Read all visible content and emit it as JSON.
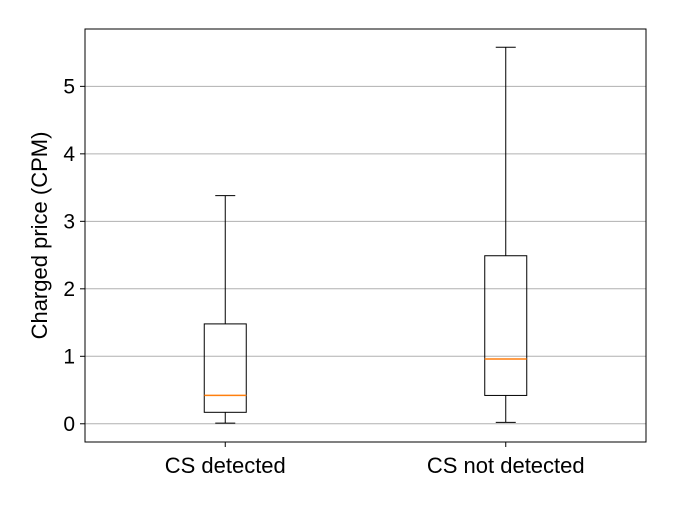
{
  "chart_data": {
    "type": "box",
    "title": "",
    "xlabel": "",
    "ylabel": "Charged price (CPM)",
    "ylim": [
      -0.27,
      5.85
    ],
    "yticks": [
      0,
      1,
      2,
      3,
      4,
      5
    ],
    "grid": "horizontal",
    "categories": [
      "CS detected",
      "CS not detected"
    ],
    "boxes": [
      {
        "name": "CS detected",
        "whisker_low": 0.01,
        "q1": 0.17,
        "median": 0.42,
        "q3": 1.48,
        "whisker_high": 3.38
      },
      {
        "name": "CS not detected",
        "whisker_low": 0.02,
        "q1": 0.42,
        "median": 0.96,
        "q3": 2.49,
        "whisker_high": 5.58
      }
    ],
    "colors": {
      "box": "#000000",
      "median": "#ff7f0e",
      "grid": "#b0b0b0"
    }
  }
}
